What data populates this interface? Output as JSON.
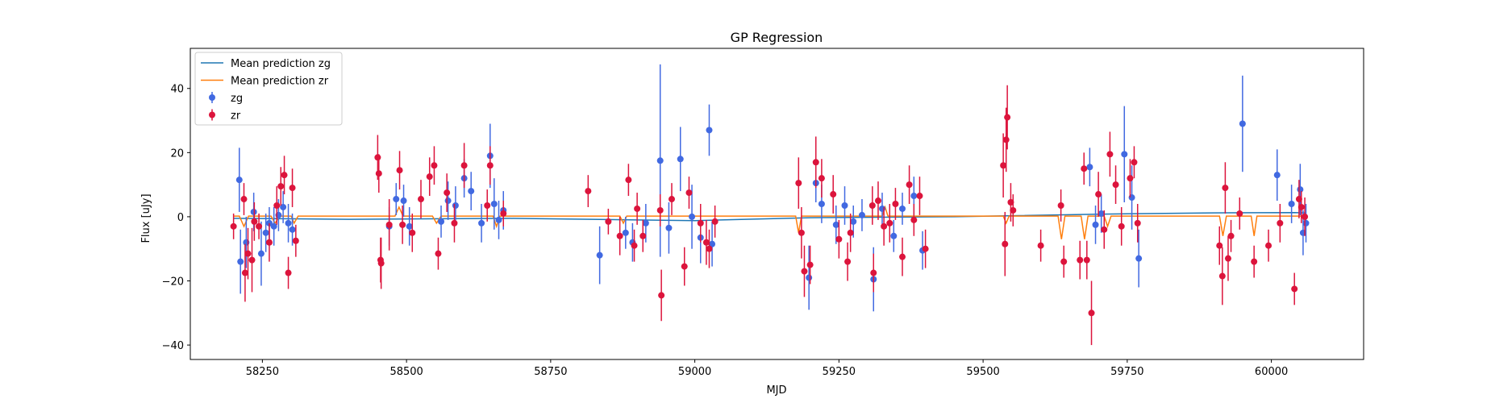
{
  "chart_data": {
    "type": "scatter",
    "title": "GP Regression",
    "xlabel": "MJD",
    "ylabel": "Flux [uJy]",
    "xlim": [
      58125,
      60160
    ],
    "ylim": [
      -44.5,
      52.5
    ],
    "xticks": [
      58250,
      58500,
      58750,
      59000,
      59250,
      59500,
      59750,
      60000
    ],
    "yticks": [
      -40,
      -20,
      0,
      20,
      40
    ],
    "grid": false,
    "legend_position": "upper-left",
    "series": [
      {
        "name": "Mean prediction zg",
        "kind": "line",
        "color": "#1f77b4",
        "points": [
          [
            58200,
            -0.5
          ],
          [
            58400,
            -0.8
          ],
          [
            58680,
            -0.5
          ],
          [
            58900,
            -1.0
          ],
          [
            59000,
            -1.2
          ],
          [
            59200,
            -0.3
          ],
          [
            59450,
            0.0
          ],
          [
            59700,
            0.8
          ],
          [
            59900,
            1.2
          ],
          [
            60040,
            1.3
          ],
          [
            60060,
            1.2
          ]
        ]
      },
      {
        "name": "Mean prediction zr",
        "kind": "line",
        "color": "#ff7f0e",
        "points": [
          [
            58200,
            0.2
          ],
          [
            58210,
            0.2
          ],
          [
            58218,
            -3
          ],
          [
            58226,
            0.2
          ],
          [
            58265,
            0.2
          ],
          [
            58272,
            -2
          ],
          [
            58280,
            0.2
          ],
          [
            58300,
            0.2
          ],
          [
            58305,
            -2
          ],
          [
            58312,
            0.2
          ],
          [
            58480,
            0.2
          ],
          [
            58487,
            3
          ],
          [
            58494,
            0.2
          ],
          [
            58545,
            0.2
          ],
          [
            58552,
            -2
          ],
          [
            58560,
            0.2
          ],
          [
            58650,
            0.2
          ],
          [
            58656,
            -3
          ],
          [
            58662,
            0.2
          ],
          [
            58870,
            0.2
          ],
          [
            58876,
            -2
          ],
          [
            58882,
            0.2
          ],
          [
            59175,
            0.2
          ],
          [
            59180,
            -5
          ],
          [
            59185,
            0.2
          ],
          [
            59325,
            0.2
          ],
          [
            59330,
            3
          ],
          [
            59335,
            0.2
          ],
          [
            59535,
            0.2
          ],
          [
            59540,
            -2
          ],
          [
            59545,
            0.2
          ],
          [
            59630,
            0.2
          ],
          [
            59636,
            -7
          ],
          [
            59642,
            0.2
          ],
          [
            59670,
            0.2
          ],
          [
            59676,
            -7
          ],
          [
            59682,
            0.2
          ],
          [
            59710,
            0.2
          ],
          [
            59716,
            -3
          ],
          [
            59722,
            0.2
          ],
          [
            59910,
            0.2
          ],
          [
            59916,
            -6
          ],
          [
            59922,
            0.2
          ],
          [
            59965,
            0.2
          ],
          [
            59970,
            -6
          ],
          [
            59975,
            0.2
          ],
          [
            60060,
            0.2
          ]
        ]
      },
      {
        "name": "zg",
        "kind": "errorbar",
        "color": "#4169e1",
        "x": [
          58210,
          58212,
          58222,
          58235,
          58248,
          58256,
          58262,
          58270,
          58278,
          58286,
          58295,
          58302,
          58470,
          58482,
          58495,
          58505,
          58560,
          58572,
          58585,
          58600,
          58612,
          58630,
          58645,
          58652,
          58660,
          58668,
          58835,
          58880,
          58892,
          58915,
          58940,
          58955,
          58975,
          58995,
          59010,
          59025,
          59030,
          59198,
          59210,
          59220,
          59245,
          59260,
          59275,
          59290,
          59310,
          59325,
          59345,
          59360,
          59380,
          59395,
          59685,
          59695,
          59705,
          59745,
          59758,
          59770,
          59950,
          60010,
          60035,
          60050,
          60055,
          60060
        ],
        "y": [
          11.5,
          -14.0,
          -8.0,
          1.5,
          -11.5,
          -5.0,
          -2.0,
          -3.0,
          0.5,
          3.0,
          -2.0,
          -4.0,
          -3.0,
          5.5,
          5.0,
          -3.0,
          -1.5,
          5.0,
          3.5,
          12.0,
          8.0,
          -2.0,
          19.0,
          4.0,
          -1.0,
          2.0,
          -12.0,
          -5.0,
          -8.0,
          -2.0,
          17.5,
          -3.5,
          18.0,
          0.0,
          -6.5,
          27.0,
          -8.5,
          -19.0,
          10.5,
          4.0,
          -2.5,
          3.5,
          -1.5,
          0.5,
          -19.5,
          2.5,
          -6.0,
          2.5,
          6.5,
          -10.5,
          15.5,
          -2.5,
          1.0,
          19.5,
          6.0,
          -13.0,
          29.0,
          13.0,
          4.0,
          8.5,
          -5.0,
          -2.0
        ],
        "err": [
          10,
          10,
          8,
          6,
          10,
          6,
          5,
          6,
          5,
          5,
          6,
          5,
          6,
          5,
          5,
          6,
          5,
          6,
          6,
          6,
          6,
          6,
          10,
          8,
          6,
          6,
          9,
          5,
          6,
          6,
          30,
          8,
          10,
          10,
          8,
          8,
          7,
          10,
          6,
          6,
          6,
          6,
          5,
          5,
          10,
          5,
          5,
          5,
          6,
          6,
          6,
          6,
          6,
          15,
          10,
          9,
          15,
          8,
          6,
          8,
          7,
          6
        ]
      },
      {
        "name": "zr",
        "kind": "errorbar",
        "color": "#dc143c",
        "x": [
          58200,
          58218,
          58220,
          58225,
          58232,
          58236,
          58244,
          58262,
          58275,
          58282,
          58288,
          58295,
          58302,
          58308,
          58450,
          58452,
          58455,
          58456,
          58470,
          58488,
          58493,
          58510,
          58525,
          58540,
          58548,
          58555,
          58570,
          58583,
          58600,
          58640,
          58645,
          58668,
          58815,
          58850,
          58870,
          58885,
          58895,
          58900,
          58910,
          58940,
          58942,
          58960,
          58982,
          58990,
          59010,
          59020,
          59025,
          59035,
          59180,
          59185,
          59190,
          59200,
          59210,
          59220,
          59240,
          59250,
          59265,
          59270,
          59308,
          59310,
          59318,
          59328,
          59338,
          59348,
          59360,
          59372,
          59380,
          59390,
          59400,
          59535,
          59538,
          59540,
          59542,
          59548,
          59552,
          59600,
          59635,
          59640,
          59668,
          59675,
          59680,
          59688,
          59700,
          59710,
          59720,
          59730,
          59740,
          59755,
          59762,
          59768,
          59910,
          59915,
          59920,
          59925,
          59930,
          59945,
          59970,
          59995,
          60015,
          60040,
          60048,
          60052,
          60058
        ],
        "y": [
          -3.0,
          5.5,
          -17.5,
          -11.5,
          -13.5,
          -1.5,
          -3.0,
          -8.0,
          3.5,
          9.5,
          13.0,
          -17.5,
          9.0,
          -7.5,
          18.5,
          13.5,
          -13.5,
          -14.5,
          -2.5,
          14.5,
          -2.5,
          -5.0,
          5.5,
          12.5,
          16.0,
          -11.5,
          7.5,
          -2.0,
          16.0,
          3.5,
          16.0,
          1.0,
          8.0,
          -1.5,
          -6.0,
          11.5,
          -9.0,
          2.5,
          -6.0,
          2.0,
          -24.5,
          5.5,
          -15.5,
          7.5,
          -2.0,
          -8.0,
          -10.0,
          -1.5,
          10.5,
          -5.0,
          -17.0,
          -15.0,
          17.0,
          12.0,
          7.0,
          -7.0,
          -14.0,
          -5.0,
          3.5,
          -17.5,
          5.0,
          -3.0,
          -2.0,
          4.0,
          -12.5,
          10.0,
          -1.0,
          6.5,
          -10.0,
          16.0,
          -8.5,
          24.0,
          31.0,
          4.5,
          2.0,
          -9.0,
          3.5,
          -14.0,
          -13.5,
          15.0,
          -13.5,
          -30.0,
          7.0,
          -4.0,
          19.5,
          10.0,
          -3.0,
          12.0,
          17.0,
          -2.0,
          -9.0,
          -18.5,
          9.0,
          -13.0,
          -6.0,
          1.0,
          -14.0,
          -9.0,
          -2.0,
          -22.5,
          5.5,
          3.0,
          0.0
        ],
        "err": [
          4,
          5,
          9,
          8,
          10,
          6,
          4,
          6,
          6,
          6,
          6,
          5,
          6,
          5,
          7,
          6,
          7,
          8,
          8,
          6,
          6,
          6,
          6,
          6,
          6,
          5,
          6,
          6,
          7,
          5,
          6,
          4,
          5,
          4,
          6,
          5,
          5,
          5,
          5,
          5,
          8,
          5,
          6,
          5,
          6,
          7,
          6,
          5,
          8,
          8,
          8,
          6,
          8,
          6,
          6,
          6,
          6,
          6,
          6,
          6,
          6,
          6,
          6,
          5,
          6,
          6,
          5,
          6,
          6,
          10,
          10,
          10,
          10,
          6,
          5,
          5,
          5,
          5,
          6,
          5,
          6,
          10,
          7,
          6,
          7,
          6,
          6,
          6,
          5,
          6,
          6,
          9,
          8,
          7,
          5,
          5,
          5,
          5,
          6,
          5,
          6,
          5,
          6
        ]
      }
    ],
    "legend": [
      {
        "label": "Mean prediction zg",
        "kind": "line",
        "color": "#1f77b4"
      },
      {
        "label": "Mean prediction zr",
        "kind": "line",
        "color": "#ff7f0e"
      },
      {
        "label": "zg",
        "kind": "errorbar",
        "color": "#4169e1"
      },
      {
        "label": "zr",
        "kind": "errorbar",
        "color": "#dc143c"
      }
    ]
  }
}
